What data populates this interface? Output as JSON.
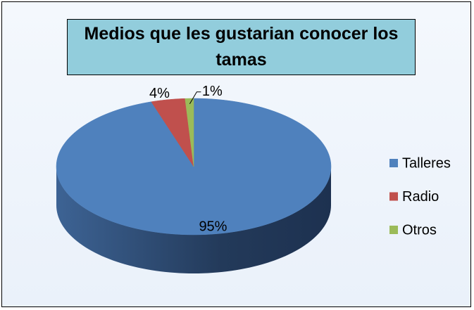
{
  "chart_data": {
    "type": "pie",
    "title": "Medios que les gustarian conocer los tamas",
    "categories": [
      "Talleres",
      "Radio",
      "Otros"
    ],
    "values": [
      95,
      4,
      1
    ],
    "value_labels": [
      "95%",
      "4%",
      "1%"
    ],
    "colors": [
      "#4f81bd",
      "#c0504d",
      "#9bbb59"
    ],
    "legend": "right"
  }
}
